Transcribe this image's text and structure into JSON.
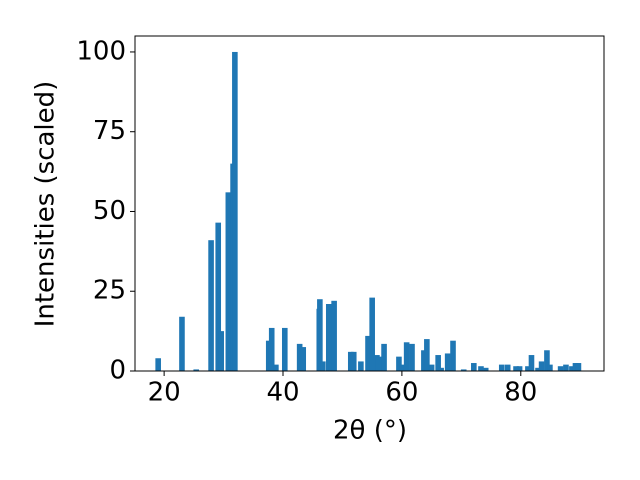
{
  "chart_data": {
    "type": "bar",
    "xlabel": "2θ (°)",
    "ylabel": "Intensities (scaled)",
    "color": "#1f77b4",
    "x": [
      19.0,
      23.0,
      25.4,
      27.9,
      29.1,
      29.6,
      30.8,
      31.3,
      31.6,
      31.9,
      37.6,
      38.1,
      38.8,
      40.3,
      42.8,
      43.4,
      46.1,
      46.2,
      46.7,
      47.7,
      48.6,
      51.4,
      51.9,
      53.1,
      54.3,
      55.0,
      55.8,
      56.1,
      57.0,
      59.5,
      60.0,
      60.8,
      61.7,
      63.7,
      64.2,
      65.0,
      66.1,
      66.6,
      67.7,
      68.6,
      70.4,
      72.1,
      73.3,
      74.1,
      76.8,
      77.8,
      79.2,
      79.8,
      81.2,
      81.8,
      82.9,
      83.5,
      84.4,
      84.9,
      86.7,
      87.6,
      88.6,
      89.2,
      89.7
    ],
    "values": [
      4,
      17,
      0.5,
      41,
      46.5,
      12.5,
      56,
      27,
      65,
      100,
      9.5,
      13.5,
      2,
      13.5,
      8.5,
      7.5,
      19.5,
      22.5,
      3,
      21,
      22,
      6,
      6,
      3,
      11,
      23,
      5,
      4.5,
      8.5,
      4.5,
      2,
      9,
      8.5,
      6.5,
      10,
      2,
      5,
      1,
      5.5,
      9.5,
      0.5,
      2.5,
      1.5,
      1,
      2,
      2,
      1.5,
      1.5,
      1.5,
      5,
      1,
      3,
      6.5,
      2,
      1.5,
      2,
      1.5,
      2.5,
      2.5
    ],
    "xlim": [
      15.1,
      94
    ],
    "ylim": [
      0,
      105
    ],
    "xticks": [
      20,
      40,
      60,
      80
    ],
    "yticks": [
      0,
      25,
      50,
      75,
      100
    ]
  }
}
